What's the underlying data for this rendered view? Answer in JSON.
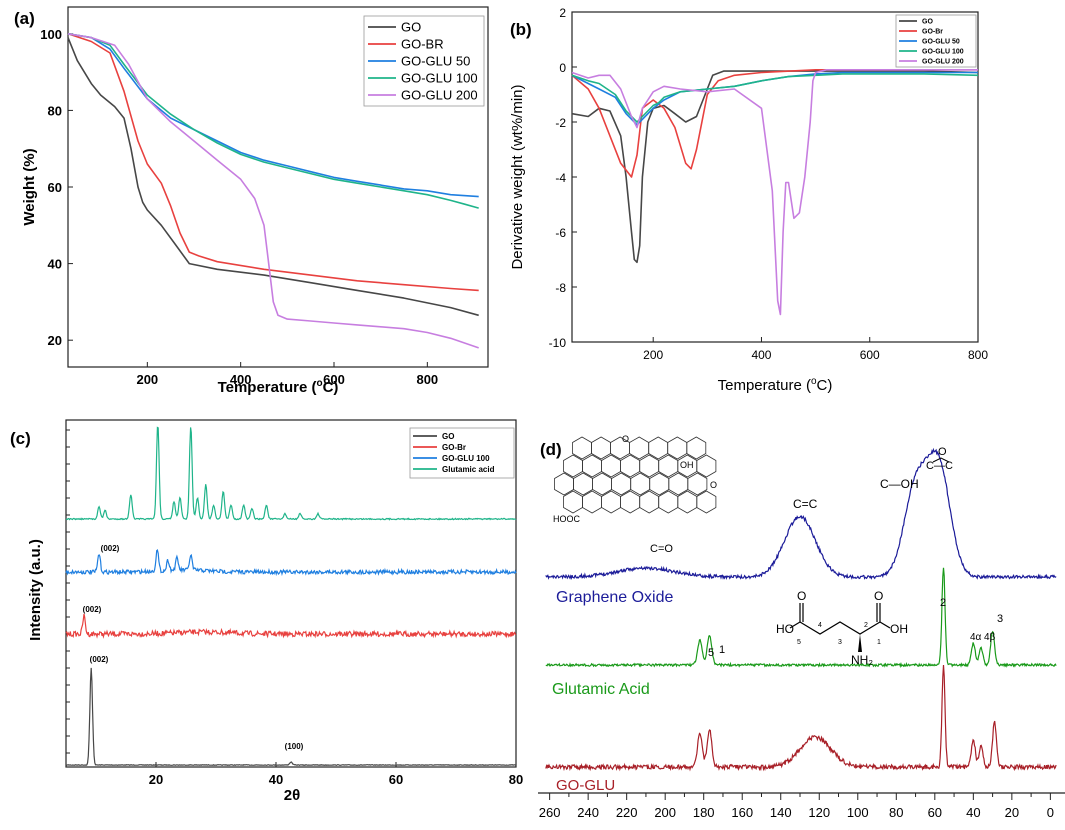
{
  "colors": {
    "go": "#474747",
    "gobr": "#e8413f",
    "glu50": "#1f7fe0",
    "glu100": "#1fb48a",
    "glu200": "#c77ee0",
    "nmr_blue": "#1c1c99",
    "nmr_green": "#1a9a1a",
    "nmr_red": "#a82028"
  },
  "chart_data": [
    {
      "panel": "(a)",
      "type": "line",
      "xlabel": "Temperature (",
      "xlabel_sup": "o",
      "xlabel_tail": "C)",
      "ylabel": "Weight (%)",
      "xlim": [
        30,
        930
      ],
      "ylim": [
        13,
        107
      ],
      "xticks": [
        200,
        400,
        600,
        800
      ],
      "yticks": [
        20,
        40,
        60,
        80,
        100
      ],
      "series": [
        {
          "name": "GO",
          "color_key": "go",
          "x": [
            30,
            50,
            80,
            100,
            130,
            150,
            165,
            180,
            190,
            200,
            230,
            260,
            290,
            350,
            450,
            550,
            650,
            750,
            850,
            910
          ],
          "y": [
            99,
            93,
            87,
            84,
            81,
            78,
            70,
            60,
            56,
            54,
            50,
            45,
            40,
            38.5,
            37,
            35,
            33,
            31,
            28.5,
            26.5
          ]
        },
        {
          "name": "GO-BR",
          "color_key": "gobr",
          "x": [
            30,
            80,
            120,
            150,
            180,
            200,
            230,
            250,
            270,
            290,
            310,
            350,
            450,
            550,
            650,
            750,
            850,
            910
          ],
          "y": [
            100,
            98,
            95,
            85,
            72,
            66,
            61,
            55,
            48,
            43,
            42,
            40.5,
            38.5,
            37,
            35.5,
            34.5,
            33.5,
            33
          ]
        },
        {
          "name": "GO-GLU 50",
          "color_key": "glu50",
          "x": [
            30,
            80,
            120,
            150,
            200,
            250,
            300,
            350,
            400,
            450,
            500,
            550,
            600,
            650,
            700,
            750,
            800,
            850,
            910
          ],
          "y": [
            100,
            99,
            96,
            91,
            83,
            78,
            75,
            72,
            69,
            67,
            65.5,
            64,
            62.5,
            61.5,
            60.5,
            59.5,
            59,
            58,
            57.5
          ]
        },
        {
          "name": "GO-GLU 100",
          "color_key": "glu100",
          "x": [
            30,
            80,
            120,
            150,
            200,
            250,
            300,
            350,
            400,
            450,
            500,
            550,
            600,
            650,
            700,
            750,
            800,
            850,
            880,
            910
          ],
          "y": [
            100,
            99,
            97,
            92,
            84,
            79,
            75,
            71.5,
            68.5,
            66.5,
            65,
            63.5,
            62,
            61,
            60,
            59,
            58,
            56.5,
            55.5,
            54.5
          ]
        },
        {
          "name": "GO-GLU 200",
          "color_key": "glu200",
          "x": [
            30,
            80,
            130,
            160,
            200,
            250,
            300,
            350,
            400,
            430,
            450,
            460,
            470,
            480,
            500,
            550,
            600,
            650,
            700,
            750,
            800,
            850,
            910
          ],
          "y": [
            100,
            99,
            97,
            92,
            83,
            77,
            72,
            67,
            62,
            57,
            50,
            40,
            30,
            26.5,
            25.5,
            25,
            24.5,
            24,
            23.5,
            23,
            22,
            20.5,
            18
          ]
        }
      ]
    },
    {
      "panel": "(b)",
      "type": "line",
      "xlabel": "Temperature (",
      "xlabel_sup": "o",
      "xlabel_tail": "C)",
      "ylabel": "Derivative weight (wt%/min)",
      "xlim": [
        50,
        800
      ],
      "ylim": [
        -10,
        2
      ],
      "xticks": [
        200,
        400,
        600,
        800
      ],
      "yticks": [
        2,
        0,
        -2,
        -4,
        -6,
        -8,
        -10
      ],
      "series": [
        {
          "name": "GO",
          "color_key": "go",
          "x": [
            50,
            80,
            100,
            120,
            140,
            150,
            160,
            165,
            170,
            175,
            180,
            190,
            200,
            220,
            240,
            260,
            280,
            300,
            310,
            330,
            360,
            400,
            500,
            600,
            700,
            800
          ],
          "y": [
            -1.7,
            -1.8,
            -1.5,
            -1.6,
            -2.5,
            -4,
            -6,
            -7,
            -7.1,
            -6.5,
            -4,
            -2,
            -1.5,
            -1.4,
            -1.7,
            -2,
            -1.8,
            -0.8,
            -0.3,
            -0.15,
            -0.15,
            -0.15,
            -0.15,
            -0.15,
            -0.15,
            -0.2
          ]
        },
        {
          "name": "GO-Br",
          "color_key": "gobr",
          "x": [
            50,
            80,
            100,
            120,
            140,
            160,
            170,
            180,
            200,
            220,
            240,
            260,
            270,
            280,
            300,
            320,
            350,
            400,
            500,
            600,
            700,
            800
          ],
          "y": [
            -0.3,
            -0.8,
            -1.5,
            -2.5,
            -3.5,
            -4,
            -3.2,
            -1.5,
            -1.2,
            -1.5,
            -2.2,
            -3.5,
            -3.7,
            -3,
            -1,
            -0.5,
            -0.3,
            -0.2,
            -0.1,
            -0.1,
            -0.1,
            -0.1
          ]
        },
        {
          "name": "GO-GLU 50",
          "color_key": "glu50",
          "x": [
            50,
            80,
            100,
            130,
            150,
            170,
            180,
            200,
            220,
            250,
            300,
            350,
            400,
            450,
            500,
            550,
            600,
            700,
            800
          ],
          "y": [
            -0.3,
            -0.6,
            -0.8,
            -1.1,
            -1.7,
            -2.1,
            -1.9,
            -1.5,
            -1.2,
            -0.9,
            -0.8,
            -0.7,
            -0.5,
            -0.35,
            -0.25,
            -0.2,
            -0.2,
            -0.2,
            -0.2
          ]
        },
        {
          "name": "GO-GLU 100",
          "color_key": "glu100",
          "x": [
            50,
            80,
            100,
            130,
            150,
            170,
            180,
            200,
            210,
            220,
            250,
            300,
            350,
            400,
            450,
            500,
            550,
            600,
            700,
            800
          ],
          "y": [
            -0.3,
            -0.5,
            -0.6,
            -1.0,
            -1.6,
            -2.0,
            -1.8,
            -1.4,
            -1.3,
            -1.1,
            -0.9,
            -0.8,
            -0.7,
            -0.5,
            -0.35,
            -0.3,
            -0.25,
            -0.25,
            -0.25,
            -0.3
          ]
        },
        {
          "name": "GO-GLU 200",
          "color_key": "glu200",
          "x": [
            50,
            80,
            100,
            120,
            140,
            160,
            170,
            180,
            200,
            220,
            250,
            300,
            350,
            400,
            420,
            430,
            435,
            440,
            445,
            450,
            460,
            470,
            480,
            490,
            495,
            500,
            520,
            600,
            700,
            800
          ],
          "y": [
            -0.2,
            -0.4,
            -0.3,
            -0.3,
            -0.8,
            -1.8,
            -2.2,
            -1.5,
            -0.9,
            -0.7,
            -0.8,
            -0.9,
            -0.8,
            -1.5,
            -4.5,
            -8.5,
            -9,
            -6,
            -4.2,
            -4.2,
            -5.5,
            -5.3,
            -4,
            -2,
            -0.5,
            -0.2,
            -0.1,
            -0.1,
            -0.1,
            -0.1
          ]
        }
      ]
    },
    {
      "panel": "(c)",
      "type": "line",
      "xlabel": "2θ",
      "ylabel": "Intensity (a.u.)",
      "xlim": [
        5,
        80
      ],
      "xticks": [
        20,
        40,
        60,
        80
      ],
      "annotations": [
        "(002)",
        "(002)",
        "(002)",
        "(100)"
      ],
      "series": [
        {
          "name": "GO",
          "color_key": "go",
          "peaks": [
            [
              9.2,
              1.0
            ],
            [
              42.5,
              0.03
            ]
          ]
        },
        {
          "name": "GO-Br",
          "color_key": "gobr",
          "peaks": [
            [
              8.0,
              0.12
            ]
          ]
        },
        {
          "name": "GO-GLU 100",
          "color_key": "glu50",
          "peaks": [
            [
              10.5,
              0.12
            ],
            [
              20.2,
              0.14
            ],
            [
              22.0,
              0.07
            ],
            [
              23.5,
              0.08
            ],
            [
              25.8,
              0.1
            ]
          ]
        },
        {
          "name": "Glutamic acid",
          "color_key": "glu100",
          "peaks": [
            [
              10.5,
              0.07
            ],
            [
              11.5,
              0.05
            ],
            [
              15.8,
              0.14
            ],
            [
              20.3,
              0.54
            ],
            [
              23.0,
              0.1
            ],
            [
              24.0,
              0.12
            ],
            [
              25.8,
              0.53
            ],
            [
              26.9,
              0.12
            ],
            [
              28.3,
              0.2
            ],
            [
              29.6,
              0.08
            ],
            [
              31.2,
              0.16
            ],
            [
              32.5,
              0.08
            ],
            [
              34.6,
              0.08
            ],
            [
              36.0,
              0.06
            ],
            [
              38.4,
              0.08
            ],
            [
              41.5,
              0.03
            ],
            [
              44.0,
              0.03
            ],
            [
              47.0,
              0.03
            ]
          ]
        }
      ]
    },
    {
      "panel": "(d)",
      "type": "line",
      "xlim": [
        265,
        -5
      ],
      "xticks": [
        260,
        240,
        220,
        200,
        180,
        160,
        140,
        120,
        100,
        80,
        60,
        40,
        20,
        0
      ],
      "labels": {
        "graphene_oxide": "Graphene Oxide",
        "glutamic_acid": "Glutamic Acid",
        "go_glu": "GO-GLU",
        "co": "C=O",
        "cc": "C=C",
        "coh": "C—OH",
        "epox_o": "O",
        "epox_c": "C—C",
        "n1": "1",
        "n2": "2",
        "n3": "3",
        "n5": "5",
        "n4a": "4α",
        "n4b": "4β",
        "ho": "HO",
        "oh": "OH",
        "o": "O",
        "nh2": "NH₂",
        "s1": "1",
        "s2": "2",
        "s3": "3",
        "s4": "4",
        "s5": "5",
        "hooc": "HOOC",
        "go_oh": "OH",
        "go_o": "O",
        "go_o2": "O"
      },
      "series": [
        {
          "name": "Graphene Oxide",
          "color_key": "nmr_blue",
          "peaks": [
            [
              210,
              0.08,
              15
            ],
            [
              130,
              0.55,
              8
            ],
            [
              70,
              0.8,
              6
            ],
            [
              58,
              1.0,
              6
            ]
          ]
        },
        {
          "name": "Glutamic Acid",
          "color_key": "nmr_green",
          "peaks": [
            [
              182,
              0.25,
              1.2
            ],
            [
              177,
              0.3,
              1.2
            ],
            [
              55.5,
              1.0,
              0.8
            ],
            [
              40,
              0.22,
              1
            ],
            [
              36,
              0.17,
              1
            ],
            [
              30,
              0.35,
              1
            ]
          ]
        },
        {
          "name": "GO-GLU",
          "color_key": "nmr_red",
          "peaks": [
            [
              182,
              0.35,
              1.2
            ],
            [
              177,
              0.38,
              1.2
            ],
            [
              122,
              0.3,
              8
            ],
            [
              55.5,
              1.0,
              0.8
            ],
            [
              40,
              0.28,
              1
            ],
            [
              36,
              0.22,
              1
            ],
            [
              29,
              0.45,
              1
            ]
          ]
        }
      ]
    }
  ],
  "legend_a": [
    "GO",
    "GO-BR",
    "GO-GLU 50",
    "GO-GLU 100",
    "GO-GLU 200"
  ],
  "legend_b": [
    "GO",
    "GO-Br",
    "GO-GLU 50",
    "GO-GLU 100",
    "GO-GLU 200"
  ],
  "legend_c": [
    "GO",
    "GO-Br",
    "GO-GLU 100",
    "Glutamic acid"
  ]
}
